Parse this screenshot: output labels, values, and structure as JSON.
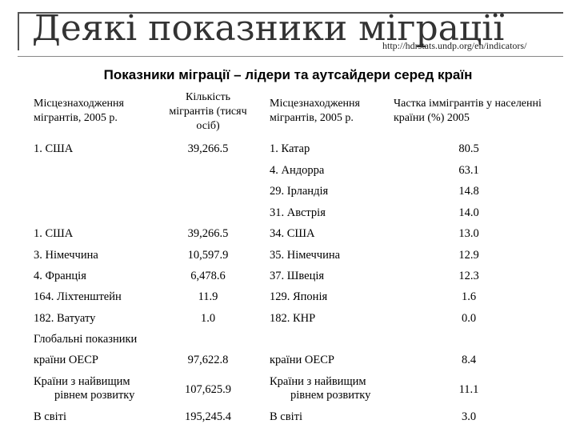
{
  "slide": {
    "title": "Деякі показники міграції",
    "url": "http://hdrstats.undp.org/en/indicators/",
    "subtitle": "Показники міграції – лідери та аутсайдери серед країн"
  },
  "headers": {
    "col1": "Місцезнаходження мігрантів, 2005 р.",
    "col2": "Кількість мігрантів (тисяч осіб)",
    "col3": "Місцезнаходження мігрантів, 2005 р.",
    "col4": "Частка іммігрантів у населенні країни (%) 2005"
  },
  "rows": {
    "r1": {
      "c1": "1. США",
      "c2": "39,266.5",
      "c3": "1. Катар",
      "c4": "80.5"
    },
    "r2": {
      "c3": "4. Андорра",
      "c4": "63.1"
    },
    "r3": {
      "c3": "29. Ірландія",
      "c4": "14.8"
    },
    "r4": {
      "c3": "31. Австрія",
      "c4": "14.0"
    },
    "r5": {
      "c1": "1. США",
      "c2": "39,266.5",
      "c3": "34. США",
      "c4": "13.0"
    },
    "r6": {
      "c1": "3. Німеччина",
      "c2": "10,597.9",
      "c3": "35. Німеччина",
      "c4": "12.9"
    },
    "r7": {
      "c1": "4. Франція",
      "c2": "6,478.6",
      "c3": "37. Швеція",
      "c4": "12.3"
    },
    "r8": {
      "c1": "164. Ліхтенштейн",
      "c2": "11.9",
      "c3": "129. Японія",
      "c4": "1.6"
    },
    "r9": {
      "c1": "182. Ватуату",
      "c2": "1.0",
      "c3": "182. КНР",
      "c4": "0.0"
    }
  },
  "global": {
    "label": "Глобальні показники",
    "oecd": {
      "c1": "країни ОЕСР",
      "c2": "97,622.8",
      "c3": "країни ОЕСР",
      "c4": "8.4"
    },
    "high": {
      "c1a": "Країни з найвищим",
      "c1b": "рівнем розвитку",
      "c2": "107,625.9",
      "c3a": "Країни з найвищим",
      "c3b": "рівнем розвитку",
      "c4": "11.1"
    },
    "world": {
      "c1": "В світі",
      "c2": "195,245.4",
      "c3": "В світі",
      "c4": "3.0"
    }
  }
}
